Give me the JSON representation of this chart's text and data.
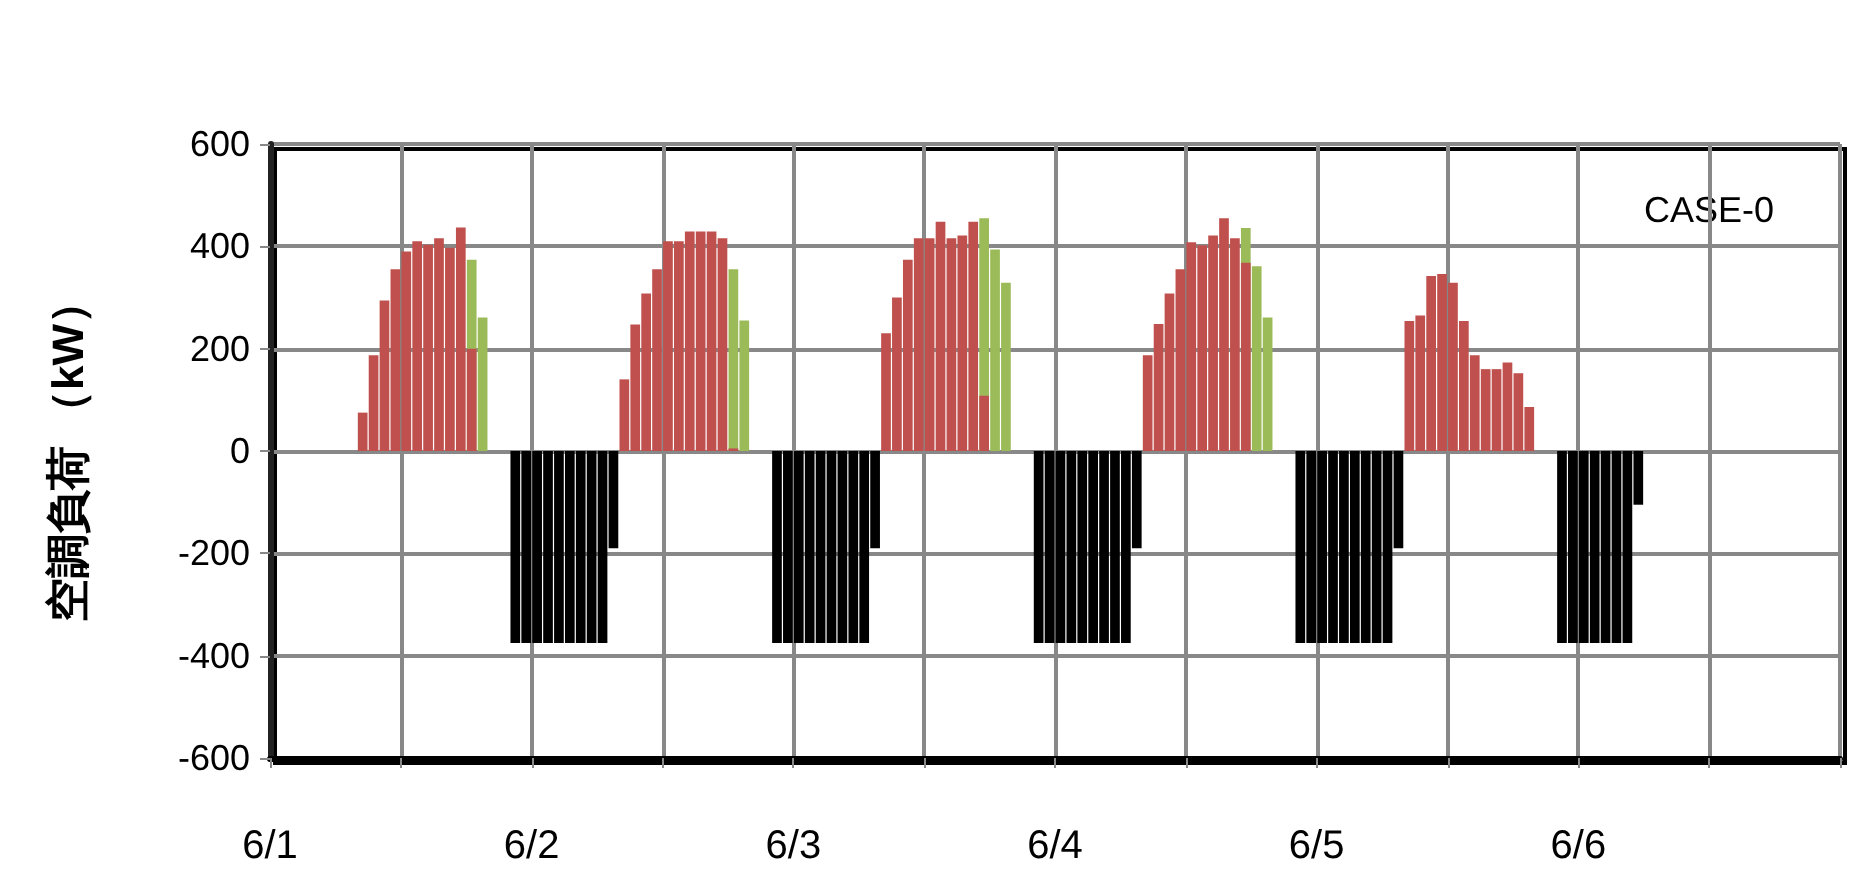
{
  "chart_data": {
    "type": "bar",
    "ylabel": "空調負荷 （kW）",
    "annotations": [
      "CASE-0"
    ],
    "grid": true,
    "x": [
      "--06-01T08:30",
      "--06-01T09:30",
      "--06-01T10:30",
      "--06-01T11:30",
      "--06-01T12:30",
      "--06-01T13:30",
      "--06-01T14:30",
      "--06-01T15:30",
      "--06-01T16:30",
      "--06-01T17:30",
      "--06-01T18:30",
      "--06-01T19:30",
      "--06-01T20:30",
      "--06-01T21:30",
      "--06-01T22:30",
      "--06-01T23:30",
      "--06-02T00:30",
      "--06-02T01:30",
      "--06-02T02:30",
      "--06-02T03:30",
      "--06-02T04:30",
      "--06-02T05:30",
      "--06-02T06:30",
      "--06-02T07:30",
      "--06-02T08:30",
      "--06-02T09:30",
      "--06-02T10:30",
      "--06-02T11:30",
      "--06-02T12:30",
      "--06-02T13:30",
      "--06-02T14:30",
      "--06-02T15:30",
      "--06-02T16:30",
      "--06-02T17:30",
      "--06-02T18:30",
      "--06-02T19:30",
      "--06-02T20:30",
      "--06-02T21:30",
      "--06-02T22:30",
      "--06-02T23:30",
      "--06-03T00:30",
      "--06-03T01:30",
      "--06-03T02:30",
      "--06-03T03:30",
      "--06-03T04:30",
      "--06-03T05:30",
      "--06-03T06:30",
      "--06-03T07:30",
      "--06-03T08:30",
      "--06-03T09:30",
      "--06-03T10:30",
      "--06-03T11:30",
      "--06-03T12:30",
      "--06-03T13:30",
      "--06-03T14:30",
      "--06-03T15:30",
      "--06-03T16:30",
      "--06-03T17:30",
      "--06-03T18:30",
      "--06-03T19:30",
      "--06-03T20:30",
      "--06-03T21:30",
      "--06-03T22:30",
      "--06-03T23:30",
      "--06-04T00:30",
      "--06-04T01:30",
      "--06-04T02:30",
      "--06-04T03:30",
      "--06-04T04:30",
      "--06-04T05:30",
      "--06-04T06:30",
      "--06-04T07:30",
      "--06-04T08:30",
      "--06-04T09:30",
      "--06-04T10:30",
      "--06-04T11:30",
      "--06-04T12:30",
      "--06-04T13:30",
      "--06-04T14:30",
      "--06-04T15:30",
      "--06-04T16:30",
      "--06-04T17:30",
      "--06-04T18:30",
      "--06-04T19:30",
      "--06-04T20:30",
      "--06-04T21:30",
      "--06-04T22:30",
      "--06-04T23:30",
      "--06-05T00:30",
      "--06-05T01:30",
      "--06-05T02:30",
      "--06-05T03:30",
      "--06-05T04:30",
      "--06-05T05:30",
      "--06-05T06:30",
      "--06-05T07:30",
      "--06-05T08:30",
      "--06-05T09:30",
      "--06-05T10:30",
      "--06-05T11:30",
      "--06-05T12:30",
      "--06-05T13:30",
      "--06-05T14:30",
      "--06-05T15:30",
      "--06-05T16:30",
      "--06-05T17:30",
      "--06-05T18:30",
      "--06-05T19:30",
      "--06-05T20:30",
      "--06-05T21:30",
      "--06-05T22:30",
      "--06-05T23:30",
      "--06-06T00:30",
      "--06-06T01:30",
      "--06-06T02:30",
      "--06-06T03:30",
      "--06-06T04:30",
      "--06-06T05:30"
    ],
    "series": [
      {
        "color": "#9bbb59",
        "values": [
          null,
          null,
          null,
          null,
          null,
          null,
          null,
          null,
          null,
          null,
          374,
          261,
          null,
          null,
          null,
          null,
          null,
          null,
          null,
          null,
          null,
          null,
          null,
          null,
          null,
          null,
          null,
          null,
          null,
          null,
          null,
          null,
          null,
          null,
          355,
          255,
          null,
          null,
          null,
          null,
          null,
          null,
          null,
          null,
          null,
          null,
          null,
          null,
          null,
          null,
          null,
          null,
          null,
          null,
          null,
          null,
          null,
          455,
          394,
          329,
          null,
          null,
          null,
          null,
          null,
          null,
          null,
          null,
          null,
          null,
          null,
          null,
          null,
          null,
          null,
          null,
          null,
          null,
          null,
          null,
          null,
          436,
          361,
          261,
          null,
          null,
          null,
          null,
          null,
          null,
          null,
          null,
          null,
          null,
          null,
          null,
          null,
          null,
          null,
          null,
          null,
          null,
          null,
          null,
          null,
          null,
          null,
          null,
          null,
          null,
          null,
          null,
          null,
          null,
          null,
          null,
          null,
          null
        ]
      },
      {
        "color": "#c0504d",
        "values": [
          75,
          187,
          294,
          355,
          390,
          410,
          403,
          416,
          397,
          437,
          200,
          null,
          null,
          null,
          null,
          null,
          null,
          null,
          null,
          null,
          null,
          null,
          null,
          null,
          140,
          247,
          308,
          355,
          410,
          410,
          429,
          429,
          429,
          416,
          5,
          null,
          null,
          null,
          null,
          null,
          null,
          null,
          null,
          null,
          null,
          null,
          null,
          null,
          230,
          300,
          374,
          416,
          416,
          448,
          416,
          421,
          448,
          108,
          null,
          null,
          null,
          null,
          null,
          null,
          null,
          null,
          null,
          null,
          null,
          null,
          null,
          null,
          187,
          248,
          308,
          355,
          408,
          402,
          421,
          455,
          416,
          368,
          null,
          null,
          null,
          null,
          null,
          null,
          null,
          null,
          null,
          null,
          null,
          null,
          null,
          null,
          254,
          265,
          342,
          346,
          329,
          254,
          187,
          160,
          160,
          173,
          152,
          86,
          null,
          null,
          null,
          null,
          null,
          null,
          null,
          null,
          null,
          null
        ]
      },
      {
        "color": "#000000",
        "values": [
          null,
          null,
          null,
          null,
          null,
          null,
          null,
          null,
          null,
          null,
          null,
          null,
          null,
          null,
          -375,
          -375,
          -375,
          -375,
          -375,
          -375,
          -375,
          -375,
          -375,
          -190,
          null,
          null,
          null,
          null,
          null,
          null,
          null,
          null,
          null,
          null,
          null,
          null,
          null,
          null,
          -375,
          -375,
          -375,
          -375,
          -375,
          -375,
          -375,
          -375,
          -375,
          -190,
          null,
          null,
          null,
          null,
          null,
          null,
          null,
          null,
          null,
          null,
          null,
          null,
          null,
          null,
          -375,
          -375,
          -375,
          -375,
          -375,
          -375,
          -375,
          -375,
          -375,
          -190,
          null,
          null,
          null,
          null,
          null,
          null,
          null,
          null,
          null,
          null,
          null,
          null,
          null,
          null,
          -375,
          -375,
          -375,
          -375,
          -375,
          -375,
          -375,
          -375,
          -375,
          -190,
          null,
          null,
          null,
          null,
          null,
          null,
          null,
          null,
          null,
          null,
          null,
          null,
          null,
          null,
          -375,
          -375,
          -375,
          -375,
          -375,
          -375,
          -375,
          -105
        ]
      }
    ],
    "xlim": [
      "--06-01",
      "--06-07"
    ],
    "xticks": [
      {
        "value": "--06-01",
        "label": "6/1"
      },
      {
        "value": "--06-01T12:00",
        "label": null
      },
      {
        "value": "--06-02",
        "label": "6/2"
      },
      {
        "value": "--06-02T12:00",
        "label": null
      },
      {
        "value": "--06-03",
        "label": "6/3"
      },
      {
        "value": "--06-03T12:00",
        "label": null
      },
      {
        "value": "--06-04",
        "label": "6/4"
      },
      {
        "value": "--06-04T12:00",
        "label": null
      },
      {
        "value": "--06-05",
        "label": "6/5"
      },
      {
        "value": "--06-05T12:00",
        "label": null
      },
      {
        "value": "--06-06",
        "label": "6/6"
      },
      {
        "value": "--06-06T12:00",
        "label": null
      },
      {
        "value": "--06-07",
        "label": null
      }
    ],
    "ylim": [
      -600,
      600
    ],
    "yticks": [
      -600,
      -400,
      -200,
      0,
      200,
      400,
      600
    ]
  }
}
